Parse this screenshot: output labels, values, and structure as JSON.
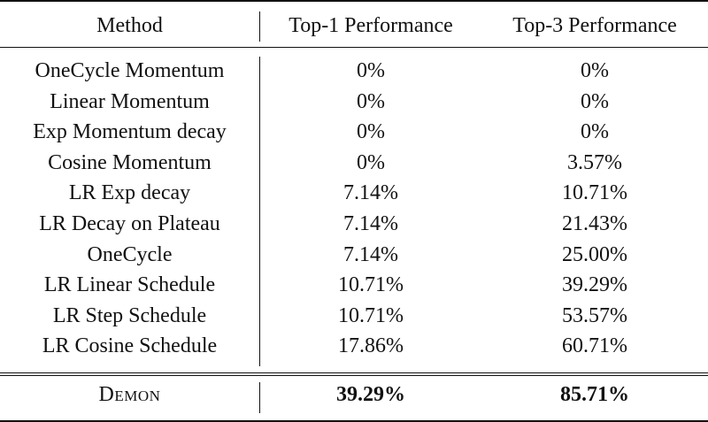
{
  "table": {
    "headers": [
      "Method",
      "Top-1 Performance",
      "Top-3 Performance"
    ],
    "rows": [
      {
        "method": "OneCycle Momentum",
        "top1": "0%",
        "top3": "0%"
      },
      {
        "method": "Linear Momentum",
        "top1": "0%",
        "top3": "0%"
      },
      {
        "method": "Exp Momentum decay",
        "top1": "0%",
        "top3": "0%"
      },
      {
        "method": "Cosine Momentum",
        "top1": "0%",
        "top3": "3.57%"
      },
      {
        "method": "LR Exp decay",
        "top1": "7.14%",
        "top3": "10.71%"
      },
      {
        "method": "LR Decay on Plateau",
        "top1": "7.14%",
        "top3": "21.43%"
      },
      {
        "method": "OneCycle",
        "top1": "7.14%",
        "top3": "25.00%"
      },
      {
        "method": "LR Linear Schedule",
        "top1": "10.71%",
        "top3": "39.29%"
      },
      {
        "method": "LR Step Schedule",
        "top1": "10.71%",
        "top3": "53.57%"
      },
      {
        "method": "LR Cosine Schedule",
        "top1": "17.86%",
        "top3": "60.71%"
      }
    ],
    "highlight": {
      "method": "Demon",
      "top1": "39.29%",
      "top3": "85.71%"
    }
  }
}
